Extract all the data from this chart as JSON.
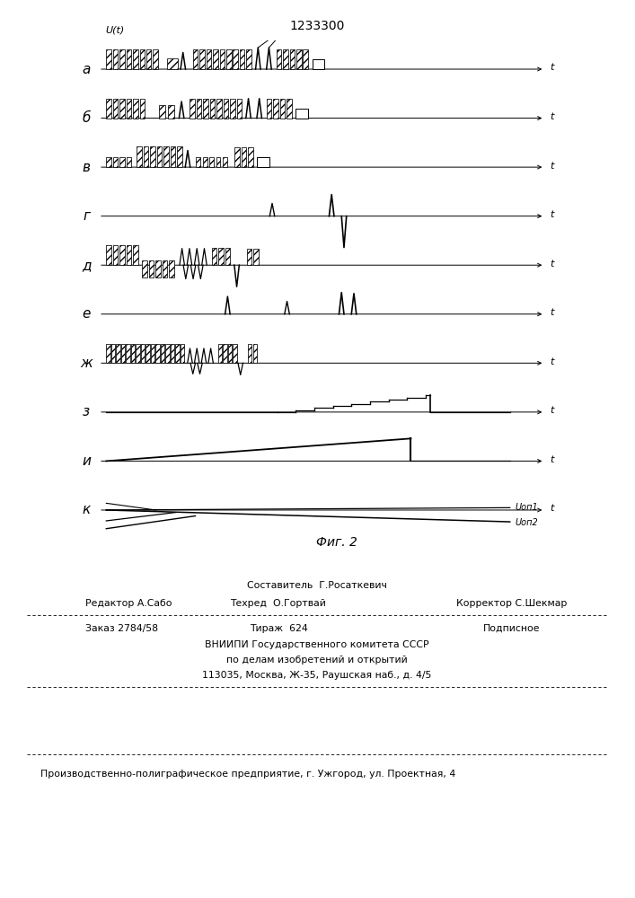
{
  "title": "1233300",
  "fig_label": "Фиг. 2",
  "row_labels": [
    "а",
    "б",
    "в",
    "г",
    "д",
    "е",
    "ж",
    "з",
    "и",
    "к"
  ],
  "uop1": "Uоп1",
  "uop2": "Uоп2",
  "footer": {
    "line1_center": "Составитель  Г.Росаткевич",
    "line2_left": "Редактор А.Сабо",
    "line2_center": "Техред  О.Гортвай",
    "line2_right": "Корректор С.Шекмар",
    "line3_left": "Заказ 2784/58",
    "line3_center": "Тираж  624",
    "line3_right": "Подписное",
    "line4": "ВНИИПИ Государственного комитета СССР",
    "line5": "по делам изобретений и открытий",
    "line6": "113035, Москва, Ж-35, Раушская наб., д. 4/5",
    "line7": "Производственно-полиграфическое предприятие, г. Ужгород, ул. Проектная, 4"
  }
}
